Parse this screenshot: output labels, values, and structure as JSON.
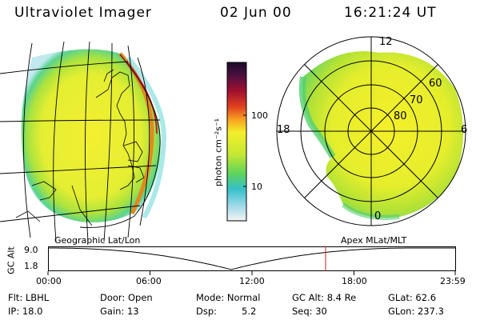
{
  "header": {
    "instrument": "Ultraviolet Imager",
    "date": "02 Jun 00",
    "time": "16:21:24 UT"
  },
  "colorbar": {
    "unit_label": "photon cm⁻²s⁻¹",
    "ticks": [
      "100",
      "10"
    ],
    "scale": "log"
  },
  "polar": {
    "mlt_labels": [
      "12",
      "18",
      "6",
      "0"
    ],
    "lat_labels": [
      "60",
      "70",
      "80"
    ]
  },
  "plot_labels": {
    "left": "Geographic Lat/Lon",
    "right": "Apex MLat/MLT"
  },
  "altitude_plot": {
    "ylabel": "GC Alt",
    "yticks": [
      "9.0",
      "1.8"
    ],
    "xticks": [
      "00:00",
      "06:00",
      "12:00",
      "18:00",
      "23:59"
    ],
    "current_time_marker_hours": 16.36
  },
  "info": {
    "filter": "Flt: LBHL",
    "ip": "IP: 18.0",
    "door": "Door: Open",
    "gain": "Gain: 13",
    "mode": "Mode: Normal",
    "dsp_label": "Dsp:",
    "dsp_value": "5.2",
    "gc_alt": "GC Alt: 8.4 Re",
    "seq": "Seq: 30",
    "glat": "GLat:  62.6",
    "glon": "GLon: 237.3"
  }
}
